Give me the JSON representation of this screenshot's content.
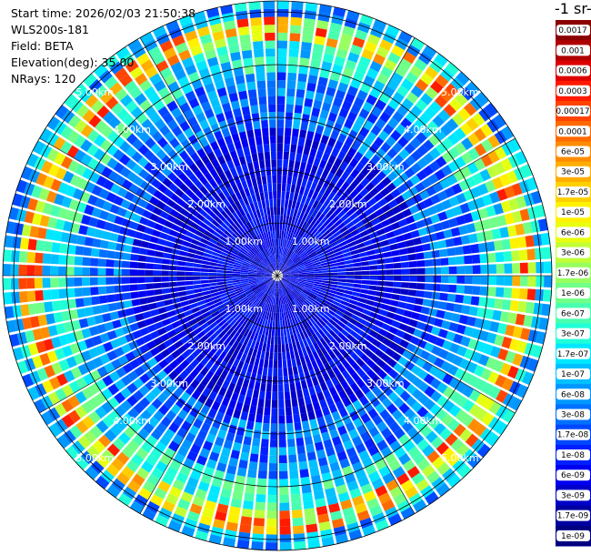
{
  "info": [
    "Start time: 2026/02/03 21:50:38",
    "WLS200s-181",
    "Field: BETA",
    "Elevation(deg): 35.00",
    "NRays: 120"
  ],
  "ring_labels": [
    "1.00km",
    "2.00km",
    "3.00km",
    "4.00km",
    "5.00km"
  ],
  "colorbar": {
    "title": "-1 sr-",
    "labels": [
      "0.0017",
      "0.001",
      "0.0006",
      "0.0003",
      "0.00017",
      "0.0001",
      "6e-05",
      "3e-05",
      "1.7e-05",
      "1e-05",
      "6e-06",
      "3e-06",
      "1.7e-06",
      "1e-06",
      "6e-07",
      "3e-07",
      "1.7e-07",
      "1e-07",
      "6e-08",
      "3e-08",
      "1.7e-08",
      "1e-08",
      "6e-09",
      "3e-09",
      "1.7e-09",
      "1e-09"
    ],
    "colors": [
      "#8b0000",
      "#b00000",
      "#dd0000",
      "#ff1a00",
      "#ff4400",
      "#ff6a00",
      "#ff8c00",
      "#ffad00",
      "#ffd000",
      "#fff200",
      "#e8ff10",
      "#c0ff38",
      "#98ff60",
      "#70ff88",
      "#48ffb0",
      "#20ffd8",
      "#00e8ff",
      "#00c0ff",
      "#0098ff",
      "#0070ff",
      "#0048ff",
      "#0020ff",
      "#0000f0",
      "#0000c8",
      "#0000a0",
      "#000080"
    ]
  }
}
